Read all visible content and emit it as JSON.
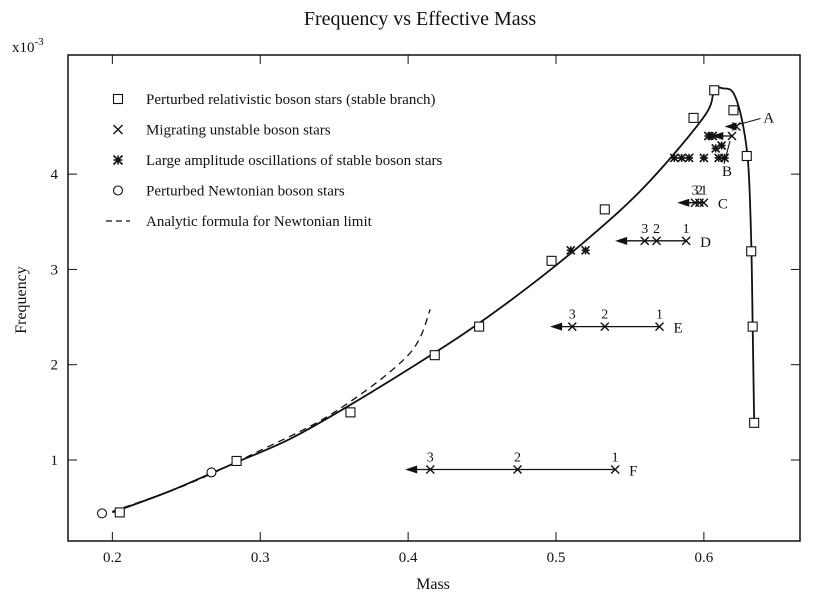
{
  "chart_data": {
    "type": "scatter",
    "title": "Frequency vs  Effective Mass",
    "xlabel": "Mass",
    "ylabel": "Frequency",
    "y_multiplier": "x10",
    "y_multiplier_exp": "-3",
    "xlim": [
      0.17,
      0.665
    ],
    "ylim": [
      0.15,
      5.25
    ],
    "xticks": [
      0.2,
      0.3,
      0.4,
      0.5,
      0.6
    ],
    "xtick_labels": [
      "0.2",
      "0.3",
      "0.4",
      "0.5",
      "0.6"
    ],
    "yticks": [
      1,
      2,
      3,
      4
    ],
    "ytick_labels": [
      "1",
      "2",
      "3",
      "4"
    ],
    "legend": [
      {
        "marker": "square",
        "label": "Perturbed relativistic boson stars (stable branch)"
      },
      {
        "marker": "x",
        "label": "Migrating unstable boson stars"
      },
      {
        "marker": "asterisk",
        "label": "Large amplitude oscillations of stable boson stars"
      },
      {
        "marker": "circle",
        "label": "Perturbed Newtonian boson stars"
      },
      {
        "marker": "dashed",
        "label": "Analytic formula for Newtonian limit"
      }
    ],
    "series": [
      {
        "name": "Stable branch curve",
        "style": "solid",
        "points": [
          [
            0.2,
            0.45
          ],
          [
            0.24,
            0.68
          ],
          [
            0.28,
            0.95
          ],
          [
            0.32,
            1.22
          ],
          [
            0.36,
            1.57
          ],
          [
            0.4,
            1.95
          ],
          [
            0.44,
            2.35
          ],
          [
            0.48,
            2.8
          ],
          [
            0.52,
            3.3
          ],
          [
            0.56,
            3.87
          ],
          [
            0.6,
            4.6
          ],
          [
            0.607,
            4.88
          ],
          [
            0.613,
            4.9
          ],
          [
            0.62,
            4.85
          ],
          [
            0.626,
            4.55
          ],
          [
            0.63,
            4.1
          ],
          [
            0.632,
            3.3
          ],
          [
            0.633,
            2.4
          ],
          [
            0.634,
            1.39
          ]
        ]
      },
      {
        "name": "Analytic formula for Newtonian limit",
        "style": "dashed",
        "points": [
          [
            0.2,
            0.46
          ],
          [
            0.25,
            0.74
          ],
          [
            0.3,
            1.1
          ],
          [
            0.35,
            1.5
          ],
          [
            0.4,
            2.1
          ],
          [
            0.415,
            2.58
          ]
        ]
      },
      {
        "name": "Perturbed relativistic boson stars (stable branch)",
        "marker": "square",
        "points": [
          [
            0.205,
            0.45
          ],
          [
            0.284,
            0.99
          ],
          [
            0.361,
            1.5
          ],
          [
            0.418,
            2.1
          ],
          [
            0.448,
            2.4
          ],
          [
            0.497,
            3.09
          ],
          [
            0.533,
            3.63
          ],
          [
            0.593,
            4.59
          ],
          [
            0.607,
            4.88
          ],
          [
            0.62,
            4.67
          ],
          [
            0.629,
            4.19
          ],
          [
            0.632,
            3.19
          ],
          [
            0.633,
            2.4
          ],
          [
            0.634,
            1.39
          ]
        ]
      },
      {
        "name": "Perturbed Newtonian boson stars",
        "marker": "circle",
        "points": [
          [
            0.193,
            0.44
          ],
          [
            0.267,
            0.87
          ]
        ]
      },
      {
        "name": "Large amplitude oscillations of stable boson stars",
        "marker": "asterisk",
        "points": [
          [
            0.51,
            3.2
          ],
          [
            0.52,
            3.2
          ],
          [
            0.58,
            4.17
          ],
          [
            0.585,
            4.17
          ],
          [
            0.59,
            4.17
          ],
          [
            0.6,
            4.17
          ],
          [
            0.603,
            4.4
          ],
          [
            0.606,
            4.4
          ],
          [
            0.608,
            4.27
          ],
          [
            0.612,
            4.3
          ],
          [
            0.61,
            4.17
          ],
          [
            0.614,
            4.17
          ]
        ]
      }
    ],
    "migrations": [
      {
        "label": "A",
        "y": 4.5,
        "points": [
          {
            "x": 0.622,
            "n": ""
          }
        ],
        "arrow_to": 0.614,
        "marker": "x"
      },
      {
        "label": "B",
        "y": 4.4,
        "points": [
          {
            "x": 0.619,
            "n": ""
          }
        ],
        "arrow_to": 0.605,
        "marker": "x"
      },
      {
        "label": "C",
        "y": 3.7,
        "points": [
          {
            "x": 0.6,
            "n": "1"
          },
          {
            "x": 0.597,
            "n": "2"
          },
          {
            "x": 0.594,
            "n": "3"
          }
        ],
        "arrow_to": 0.582,
        "marker": "x"
      },
      {
        "label": "D",
        "y": 3.3,
        "points": [
          {
            "x": 0.588,
            "n": "1"
          },
          {
            "x": 0.568,
            "n": "2"
          },
          {
            "x": 0.56,
            "n": "3"
          }
        ],
        "arrow_to": 0.54,
        "marker": "x"
      },
      {
        "label": "E",
        "y": 2.4,
        "points": [
          {
            "x": 0.57,
            "n": "1"
          },
          {
            "x": 0.533,
            "n": "2"
          },
          {
            "x": 0.511,
            "n": "3"
          }
        ],
        "arrow_to": 0.496,
        "marker": "x"
      },
      {
        "label": "F",
        "y": 0.9,
        "points": [
          {
            "x": 0.54,
            "n": "1"
          },
          {
            "x": 0.474,
            "n": "2"
          },
          {
            "x": 0.415,
            "n": "3"
          }
        ],
        "arrow_to": 0.398,
        "marker": "x"
      }
    ]
  }
}
